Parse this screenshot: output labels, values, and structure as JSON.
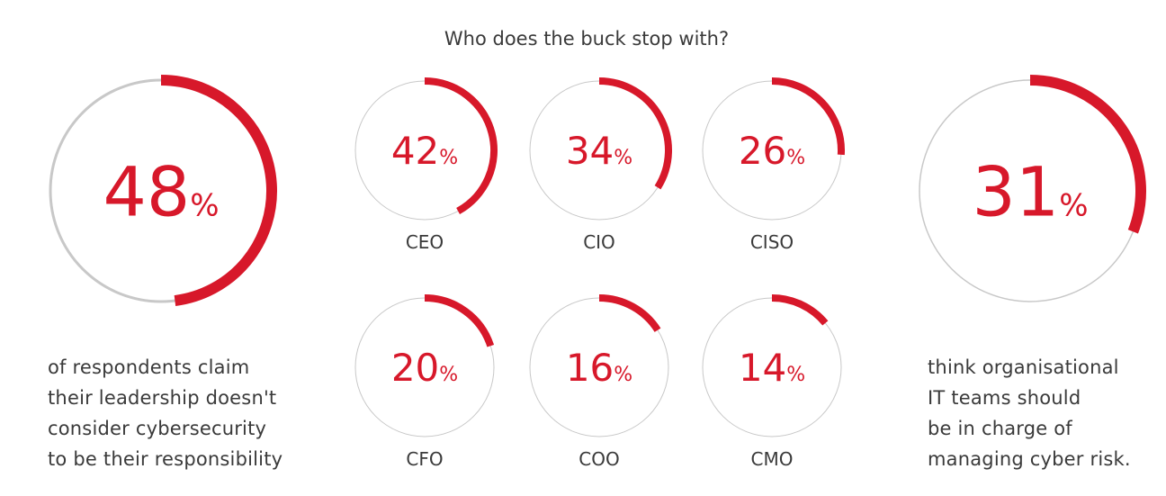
{
  "title": "Who does the buck stop with?",
  "colors": {
    "accent": "#d7182a",
    "ring": "#c8c8c8",
    "text": "#3a3a3a"
  },
  "chart_data": {
    "type": "donut",
    "title": "Who does the buck stop with?",
    "percent_suffix": "%",
    "headline_left": {
      "value": 48,
      "caption_lines": [
        "of respondents claim",
        "their leadership doesn't",
        "consider cybersecurity",
        "to be their responsibility"
      ]
    },
    "roles": [
      {
        "label": "CEO",
        "value": 42
      },
      {
        "label": "CIO",
        "value": 34
      },
      {
        "label": "CISO",
        "value": 26
      },
      {
        "label": "CFO",
        "value": 20
      },
      {
        "label": "COO",
        "value": 16
      },
      {
        "label": "CMO",
        "value": 14
      }
    ],
    "headline_right": {
      "value": 31,
      "caption_lines": [
        "think organisational",
        "IT teams should",
        "be in charge of",
        "managing cyber risk."
      ]
    }
  }
}
